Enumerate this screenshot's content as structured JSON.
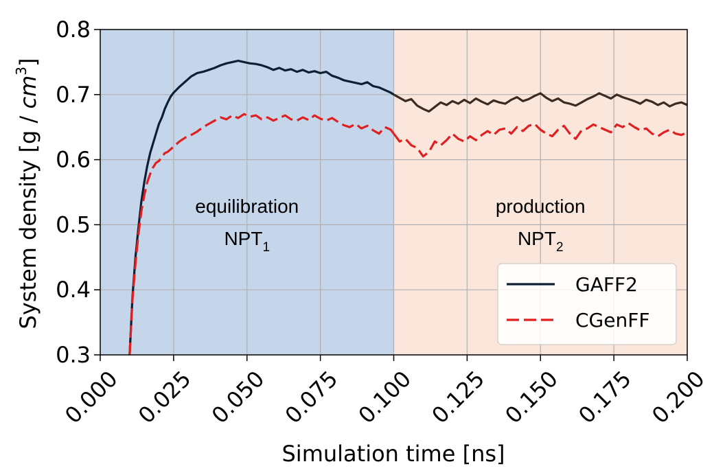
{
  "chart_data": {
    "type": "line",
    "xlabel": "Simulation time [ns]",
    "ylabel": {
      "prefix": "System density [g / ",
      "unit": "cm",
      "exp": "3",
      "suffix": "]"
    },
    "xlim": [
      0.0,
      0.2
    ],
    "ylim": [
      0.3,
      0.8
    ],
    "xticks": [
      0.0,
      0.025,
      0.05,
      0.075,
      0.1,
      0.125,
      0.15,
      0.175,
      0.2
    ],
    "xtick_labels": [
      "0.000",
      "0.025",
      "0.050",
      "0.075",
      "0.100",
      "0.125",
      "0.150",
      "0.175",
      "0.200"
    ],
    "yticks": [
      0.3,
      0.4,
      0.5,
      0.6,
      0.7,
      0.8
    ],
    "ytick_labels": [
      "0.3",
      "0.4",
      "0.5",
      "0.6",
      "0.7",
      "0.8"
    ],
    "grid": true,
    "legend_position": "bottom-right",
    "regions": [
      {
        "x0": 0.0,
        "x1": 0.1,
        "color": "#c5d6ea",
        "label": "equilibration",
        "sublabel_main": "NPT",
        "sublabel_sub": "1"
      },
      {
        "x0": 0.1,
        "x1": 0.2,
        "color": "#fbe6dc",
        "label": "production",
        "sublabel_main": "NPT",
        "sublabel_sub": "2"
      }
    ],
    "series": [
      {
        "name": "GAFF2",
        "style": "solid",
        "color_eq": "#0d1f33",
        "color_prod": "#3a2a22",
        "x": [
          0.01,
          0.011,
          0.012,
          0.013,
          0.014,
          0.015,
          0.016,
          0.017,
          0.018,
          0.019,
          0.02,
          0.021,
          0.022,
          0.023,
          0.024,
          0.025,
          0.027,
          0.029,
          0.031,
          0.033,
          0.035,
          0.037,
          0.039,
          0.041,
          0.043,
          0.045,
          0.047,
          0.049,
          0.051,
          0.053,
          0.055,
          0.057,
          0.059,
          0.061,
          0.063,
          0.065,
          0.067,
          0.069,
          0.071,
          0.073,
          0.075,
          0.077,
          0.079,
          0.081,
          0.083,
          0.085,
          0.087,
          0.089,
          0.091,
          0.093,
          0.095,
          0.097,
          0.099,
          0.1,
          0.102,
          0.104,
          0.106,
          0.108,
          0.11,
          0.112,
          0.114,
          0.116,
          0.118,
          0.12,
          0.122,
          0.124,
          0.126,
          0.128,
          0.13,
          0.132,
          0.134,
          0.136,
          0.138,
          0.14,
          0.142,
          0.144,
          0.146,
          0.148,
          0.15,
          0.152,
          0.154,
          0.156,
          0.158,
          0.16,
          0.162,
          0.164,
          0.166,
          0.168,
          0.17,
          0.172,
          0.174,
          0.176,
          0.178,
          0.18,
          0.182,
          0.184,
          0.186,
          0.188,
          0.19,
          0.192,
          0.194,
          0.196,
          0.198,
          0.2
        ],
        "y": [
          0.3,
          0.39,
          0.45,
          0.495,
          0.535,
          0.565,
          0.59,
          0.61,
          0.625,
          0.64,
          0.655,
          0.665,
          0.678,
          0.688,
          0.697,
          0.703,
          0.712,
          0.72,
          0.728,
          0.733,
          0.735,
          0.738,
          0.741,
          0.745,
          0.748,
          0.75,
          0.752,
          0.75,
          0.748,
          0.747,
          0.745,
          0.742,
          0.738,
          0.741,
          0.737,
          0.739,
          0.735,
          0.738,
          0.734,
          0.736,
          0.733,
          0.735,
          0.729,
          0.726,
          0.722,
          0.72,
          0.718,
          0.716,
          0.719,
          0.713,
          0.711,
          0.707,
          0.703,
          0.7,
          0.695,
          0.69,
          0.693,
          0.683,
          0.678,
          0.674,
          0.681,
          0.688,
          0.684,
          0.69,
          0.686,
          0.692,
          0.687,
          0.694,
          0.689,
          0.685,
          0.691,
          0.688,
          0.686,
          0.692,
          0.696,
          0.69,
          0.693,
          0.698,
          0.702,
          0.695,
          0.69,
          0.694,
          0.688,
          0.686,
          0.683,
          0.688,
          0.693,
          0.697,
          0.702,
          0.698,
          0.694,
          0.7,
          0.696,
          0.693,
          0.69,
          0.686,
          0.692,
          0.689,
          0.684,
          0.688,
          0.682,
          0.686,
          0.688,
          0.684
        ]
      },
      {
        "name": "CGenFF",
        "style": "dashed",
        "color_eq": "#e02020",
        "color_prod": "#e02020",
        "x": [
          0.01,
          0.011,
          0.012,
          0.013,
          0.014,
          0.015,
          0.016,
          0.017,
          0.018,
          0.019,
          0.02,
          0.021,
          0.022,
          0.023,
          0.024,
          0.025,
          0.027,
          0.029,
          0.031,
          0.033,
          0.035,
          0.037,
          0.039,
          0.041,
          0.043,
          0.045,
          0.047,
          0.049,
          0.051,
          0.053,
          0.055,
          0.057,
          0.059,
          0.061,
          0.063,
          0.065,
          0.067,
          0.069,
          0.071,
          0.073,
          0.075,
          0.077,
          0.079,
          0.081,
          0.083,
          0.085,
          0.087,
          0.089,
          0.091,
          0.093,
          0.095,
          0.097,
          0.099,
          0.1,
          0.102,
          0.104,
          0.106,
          0.108,
          0.11,
          0.112,
          0.114,
          0.116,
          0.118,
          0.12,
          0.122,
          0.124,
          0.126,
          0.128,
          0.13,
          0.132,
          0.134,
          0.136,
          0.138,
          0.14,
          0.142,
          0.144,
          0.146,
          0.148,
          0.15,
          0.152,
          0.154,
          0.156,
          0.158,
          0.16,
          0.162,
          0.164,
          0.166,
          0.168,
          0.17,
          0.172,
          0.174,
          0.176,
          0.178,
          0.18,
          0.182,
          0.184,
          0.186,
          0.188,
          0.19,
          0.192,
          0.194,
          0.196,
          0.198,
          0.2
        ],
        "y": [
          0.3,
          0.385,
          0.44,
          0.485,
          0.52,
          0.545,
          0.565,
          0.578,
          0.588,
          0.595,
          0.598,
          0.604,
          0.61,
          0.612,
          0.616,
          0.62,
          0.628,
          0.634,
          0.638,
          0.643,
          0.65,
          0.655,
          0.66,
          0.665,
          0.662,
          0.668,
          0.664,
          0.67,
          0.666,
          0.668,
          0.662,
          0.665,
          0.66,
          0.664,
          0.668,
          0.662,
          0.66,
          0.665,
          0.661,
          0.668,
          0.663,
          0.66,
          0.664,
          0.658,
          0.653,
          0.65,
          0.655,
          0.648,
          0.652,
          0.645,
          0.64,
          0.65,
          0.646,
          0.64,
          0.628,
          0.632,
          0.622,
          0.618,
          0.605,
          0.612,
          0.628,
          0.622,
          0.63,
          0.64,
          0.632,
          0.628,
          0.636,
          0.63,
          0.638,
          0.644,
          0.638,
          0.646,
          0.648,
          0.64,
          0.65,
          0.644,
          0.652,
          0.655,
          0.646,
          0.64,
          0.636,
          0.646,
          0.652,
          0.64,
          0.632,
          0.645,
          0.648,
          0.654,
          0.65,
          0.646,
          0.642,
          0.654,
          0.65,
          0.656,
          0.65,
          0.645,
          0.648,
          0.64,
          0.636,
          0.642,
          0.646,
          0.64,
          0.638,
          0.642
        ]
      }
    ]
  }
}
